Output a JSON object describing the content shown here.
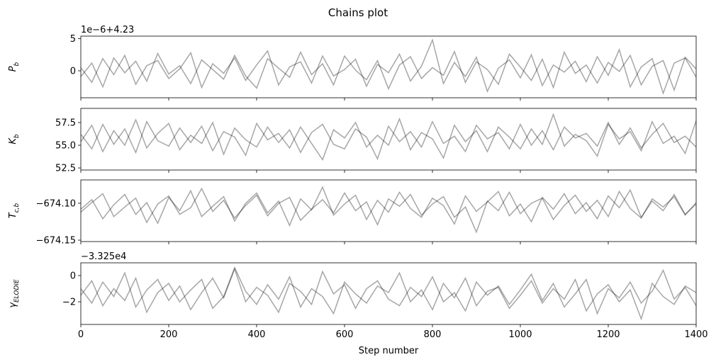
{
  "title": "Chains plot",
  "chart_data": [
    {
      "type": "line",
      "ylabel": {
        "main": "P",
        "sub": "b"
      },
      "offset_text": "1e−6+4.23",
      "x": [
        0,
        25,
        50,
        75,
        100,
        125,
        150,
        175,
        200,
        225,
        250,
        275,
        300,
        325,
        350,
        375,
        400,
        425,
        450,
        475,
        500,
        525,
        550,
        575,
        600,
        625,
        650,
        675,
        700,
        725,
        750,
        775,
        800,
        825,
        850,
        875,
        900,
        925,
        950,
        975,
        1000,
        1025,
        1050,
        1075,
        1100,
        1125,
        1150,
        1175,
        1200,
        1225,
        1250,
        1275,
        1300,
        1325,
        1350,
        1375,
        1400
      ],
      "series": [
        {
          "color": "rgba(0,0,0,0.35)",
          "values": [
            0.5,
            -1.8,
            1.9,
            -0.6,
            2.4,
            -2.1,
            0.8,
            1.6,
            -1.2,
            0.3,
            2.8,
            -2.6,
            1.1,
            -0.4,
            2.0,
            -1.5,
            0.9,
            3.1,
            -2.2,
            0.6,
            1.4,
            -1.9,
            2.3,
            -0.8,
            0.2,
            1.8,
            -2.4,
            1.0,
            -0.3,
            2.6,
            -1.6,
            0.7,
            4.8,
            -2.0,
            1.3,
            -0.9,
            2.1,
            -3.2,
            0.4,
            1.7,
            -1.1,
            2.5,
            -2.3,
            0.9,
            -0.2,
            1.5,
            -1.7,
            2.2,
            -0.7,
            3.3,
            -2.5,
            0.6,
            1.9,
            -3.5,
            1.2,
            2.0,
            -1.0
          ]
        },
        {
          "color": "rgba(0,0,0,0.35)",
          "values": [
            -0.9,
            1.2,
            -2.5,
            2.0,
            -0.3,
            1.5,
            -1.6,
            2.7,
            -0.5,
            0.8,
            -2.0,
            1.7,
            0.2,
            -1.3,
            2.4,
            -0.8,
            -2.7,
            1.9,
            0.4,
            -1.0,
            2.9,
            -0.6,
            1.1,
            -2.2,
            2.3,
            0.1,
            -1.4,
            1.6,
            -2.8,
            0.9,
            2.2,
            -1.2,
            0.5,
            -0.7,
            3.0,
            -1.8,
            1.4,
            0.2,
            -2.1,
            2.6,
            0.6,
            -1.5,
            1.8,
            -2.6,
            2.9,
            -0.4,
            0.9,
            -1.9,
            1.3,
            -0.1,
            2.4,
            -2.2,
            0.7,
            1.6,
            -3.0,
            2.1,
            0.3
          ]
        }
      ],
      "xlim": [
        0,
        1400
      ],
      "xticks": [
        0,
        200,
        400,
        600,
        800,
        1000,
        1200,
        1400
      ],
      "ylim": [
        -4.2,
        5.4
      ],
      "yticks": [
        0,
        5
      ]
    },
    {
      "type": "line",
      "ylabel": {
        "main": "K",
        "sub": "b"
      },
      "x": [
        0,
        25,
        50,
        75,
        100,
        125,
        150,
        175,
        200,
        225,
        250,
        275,
        300,
        325,
        350,
        375,
        400,
        425,
        450,
        475,
        500,
        525,
        550,
        575,
        600,
        625,
        650,
        675,
        700,
        725,
        750,
        775,
        800,
        825,
        850,
        875,
        900,
        925,
        950,
        975,
        1000,
        1025,
        1050,
        1075,
        1100,
        1125,
        1150,
        1175,
        1200,
        1225,
        1250,
        1275,
        1300,
        1325,
        1350,
        1375,
        1400
      ],
      "series": [
        {
          "color": "rgba(0,0,0,0.35)",
          "values": [
            56.2,
            54.6,
            57.3,
            55.1,
            56.8,
            54.2,
            57.6,
            55.5,
            54.9,
            56.9,
            55.3,
            57.1,
            54.4,
            56.5,
            55.9,
            53.9,
            57.4,
            55.6,
            56.3,
            54.7,
            57.0,
            55.2,
            53.4,
            56.7,
            55.8,
            57.5,
            54.8,
            56.1,
            55.0,
            57.9,
            54.5,
            56.4,
            55.7,
            53.6,
            57.2,
            55.4,
            56.6,
            54.3,
            57.0,
            55.9,
            54.6,
            56.8,
            55.1,
            58.4,
            54.9,
            56.2,
            55.5,
            53.8,
            57.3,
            55.7,
            56.5,
            54.4,
            57.6,
            55.2,
            56.0,
            54.1,
            57.7
          ]
        },
        {
          "color": "rgba(0,0,0,0.35)",
          "values": [
            55.4,
            57.2,
            54.3,
            56.6,
            55.0,
            57.8,
            54.7,
            56.3,
            57.4,
            54.5,
            56.1,
            55.2,
            57.5,
            54.0,
            56.9,
            55.6,
            54.8,
            57.0,
            55.3,
            56.7,
            54.2,
            56.4,
            57.3,
            55.1,
            54.6,
            56.8,
            55.9,
            53.5,
            57.1,
            55.4,
            56.5,
            54.8,
            57.6,
            55.2,
            56.0,
            54.3,
            57.2,
            55.7,
            56.4,
            54.6,
            57.3,
            55.0,
            56.6,
            54.5,
            57.0,
            55.8,
            56.3,
            54.9,
            57.5,
            55.1,
            56.9,
            54.7,
            56.2,
            57.4,
            55.3,
            56.0,
            54.8
          ]
        }
      ],
      "xlim": [
        0,
        1400
      ],
      "xticks": [
        0,
        200,
        400,
        600,
        800,
        1000,
        1200,
        1400
      ],
      "ylim": [
        52.27,
        59.06
      ],
      "yticks": [
        52.5,
        {
          "value": 55,
          "label": "55.0"
        },
        57.5
      ]
    },
    {
      "type": "line",
      "ylabel": {
        "main": "T",
        "sub": "c,b"
      },
      "x": [
        0,
        25,
        50,
        75,
        100,
        125,
        150,
        175,
        200,
        225,
        250,
        275,
        300,
        325,
        350,
        375,
        400,
        425,
        450,
        475,
        500,
        525,
        550,
        575,
        600,
        625,
        650,
        675,
        700,
        725,
        750,
        775,
        800,
        825,
        850,
        875,
        900,
        925,
        950,
        975,
        1000,
        1025,
        1050,
        1075,
        1100,
        1125,
        1150,
        1175,
        1200,
        1225,
        1250,
        1275,
        1300,
        1325,
        1350,
        1375,
        1400
      ],
      "series": [
        {
          "color": "rgba(0,0,0,0.35)",
          "values": [
            -674.108,
            -674.095,
            -674.121,
            -674.102,
            -674.088,
            -674.115,
            -674.099,
            -674.127,
            -674.092,
            -674.11,
            -674.083,
            -674.118,
            -674.104,
            -674.091,
            -674.124,
            -674.1,
            -674.086,
            -674.113,
            -674.097,
            -674.13,
            -674.094,
            -674.109,
            -674.078,
            -674.116,
            -674.101,
            -674.089,
            -674.122,
            -674.096,
            -674.112,
            -674.085,
            -674.107,
            -674.119,
            -674.093,
            -674.103,
            -674.128,
            -674.09,
            -674.111,
            -674.098,
            -674.084,
            -674.117,
            -674.101,
            -674.125,
            -674.092,
            -674.108,
            -674.087,
            -674.114,
            -674.099,
            -674.121,
            -674.09,
            -674.106,
            -674.082,
            -674.119,
            -674.097,
            -674.11,
            -674.088,
            -674.115,
            -674.101
          ]
        },
        {
          "color": "rgba(0,0,0,0.35)",
          "values": [
            -674.112,
            -674.099,
            -674.087,
            -674.118,
            -674.105,
            -674.093,
            -674.126,
            -674.101,
            -674.09,
            -674.115,
            -674.106,
            -674.08,
            -674.111,
            -674.096,
            -674.12,
            -674.103,
            -674.089,
            -674.117,
            -674.1,
            -674.092,
            -674.123,
            -674.108,
            -674.095,
            -674.113,
            -674.086,
            -674.11,
            -674.098,
            -674.129,
            -674.094,
            -674.104,
            -674.088,
            -674.116,
            -674.101,
            -674.091,
            -674.119,
            -674.105,
            -674.139,
            -674.097,
            -674.11,
            -674.085,
            -674.114,
            -674.1,
            -674.093,
            -674.122,
            -674.103,
            -674.089,
            -674.111,
            -674.096,
            -674.118,
            -674.084,
            -674.107,
            -674.12,
            -674.094,
            -674.105,
            -674.091,
            -674.116,
            -674.099
          ]
        }
      ],
      "xlim": [
        0,
        1400
      ],
      "xticks": [
        0,
        200,
        400,
        600,
        800,
        1000,
        1200,
        1400
      ],
      "ylim": [
        -674.1519,
        -674.0683
      ],
      "yticks": [
        {
          "value": -674.15,
          "label": "−674.15"
        },
        {
          "value": -674.1,
          "label": "−674.10"
        }
      ]
    },
    {
      "type": "line",
      "ylabel": {
        "main": "γ",
        "sub": "ELODIE"
      },
      "offset_text": "−3.325e4",
      "xlabel": "Step number",
      "x": [
        0,
        25,
        50,
        75,
        100,
        125,
        150,
        175,
        200,
        225,
        250,
        275,
        300,
        325,
        350,
        375,
        400,
        425,
        450,
        475,
        500,
        525,
        550,
        575,
        600,
        625,
        650,
        675,
        700,
        725,
        750,
        775,
        800,
        825,
        850,
        875,
        900,
        925,
        950,
        975,
        1000,
        1025,
        1050,
        1075,
        1100,
        1125,
        1150,
        1175,
        1200,
        1225,
        1250,
        1275,
        1300,
        1325,
        1350,
        1375,
        1400
      ],
      "series": [
        {
          "color": "rgba(0,0,0,0.35)",
          "values": [
            -1.0,
            -2.1,
            -0.5,
            -1.6,
            0.2,
            -2.4,
            -1.1,
            -0.3,
            -1.9,
            -0.8,
            -2.6,
            -1.3,
            -0.2,
            -1.7,
            0.5,
            -2.0,
            -0.9,
            -1.5,
            -2.8,
            -0.6,
            -1.2,
            -2.2,
            0.3,
            -1.4,
            -0.7,
            -2.5,
            -1.0,
            -0.4,
            -1.8,
            -2.3,
            -0.9,
            -1.6,
            -0.1,
            -2.0,
            -1.3,
            -2.7,
            -0.5,
            -1.5,
            -0.8,
            -2.2,
            -1.1,
            0.1,
            -1.9,
            -0.6,
            -2.4,
            -1.4,
            -0.3,
            -2.9,
            -1.0,
            -1.7,
            -0.5,
            -2.1,
            -1.2,
            0.4,
            -1.8,
            -0.9,
            -2.3
          ]
        },
        {
          "color": "rgba(0,0,0,0.35)",
          "values": [
            -1.5,
            -0.4,
            -2.3,
            -1.0,
            -1.9,
            -0.2,
            -2.8,
            -1.3,
            -0.6,
            -2.0,
            -1.1,
            -0.3,
            -2.5,
            -1.6,
            0.6,
            -1.2,
            -2.2,
            -0.7,
            -1.8,
            -0.1,
            -2.4,
            -1.0,
            -1.6,
            -2.9,
            -0.5,
            -1.4,
            -2.1,
            -0.8,
            -1.3,
            0.2,
            -2.0,
            -1.1,
            -2.6,
            -0.6,
            -1.7,
            -0.2,
            -2.3,
            -1.2,
            -0.9,
            -2.5,
            -1.5,
            -0.4,
            -2.1,
            -1.0,
            -1.8,
            -0.3,
            -2.7,
            -1.4,
            -0.7,
            -2.0,
            -1.1,
            -3.3,
            -0.6,
            -1.6,
            -2.2,
            -0.8,
            -1.3
          ]
        }
      ],
      "xlim": [
        0,
        1400
      ],
      "xticks": [
        0,
        200,
        400,
        600,
        800,
        1000,
        1200,
        1400
      ],
      "ylim": [
        -3.73,
        0.97
      ],
      "yticks": [
        {
          "value": -2,
          "label": "−2"
        },
        0
      ]
    }
  ]
}
